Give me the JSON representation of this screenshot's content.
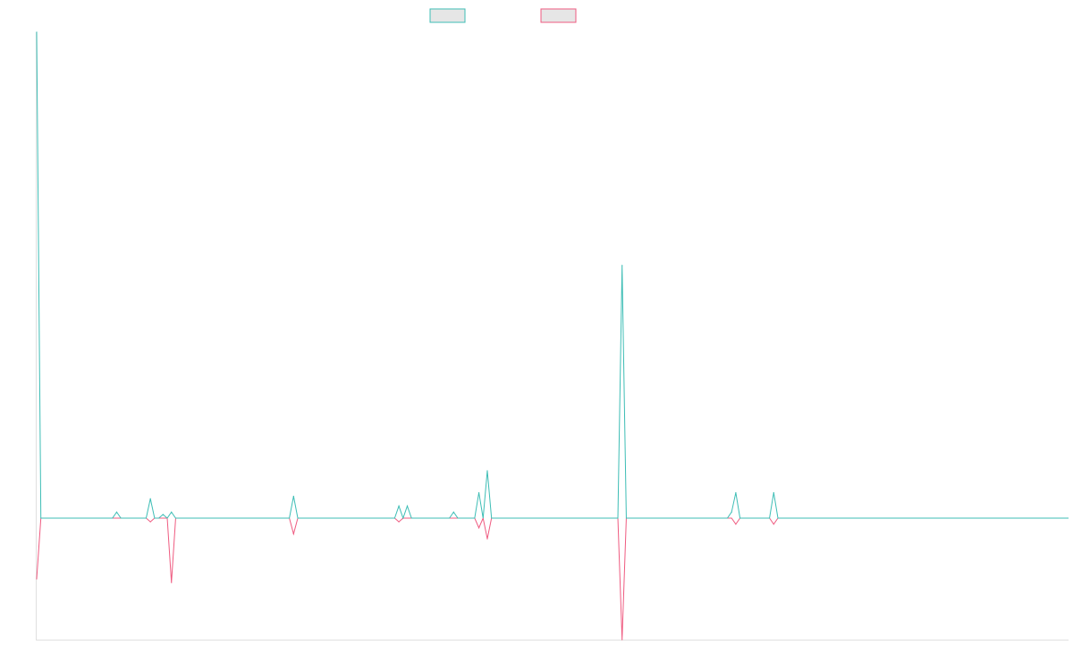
{
  "chart_data": {
    "type": "line",
    "title": "",
    "xlabel": "",
    "ylabel": "",
    "ylim": [
      -100,
      400
    ],
    "grid": false,
    "legend_placement": "top-center",
    "colors": {
      "series_a": "#3dbdb5",
      "series_b": "#ef5b80",
      "legend_fill": "#e6e6e6",
      "axis": "#e0e0e0"
    },
    "series": [
      {
        "values": [
          400,
          0,
          0,
          0,
          0,
          0,
          0,
          0,
          0,
          0,
          0,
          0,
          0,
          0,
          0,
          0,
          0,
          0,
          0,
          0,
          0,
          0,
          0,
          0,
          0,
          0,
          0,
          0,
          0,
          0,
          0,
          0,
          0,
          0,
          0,
          0,
          0,
          0,
          0,
          0,
          0,
          0,
          0,
          0,
          0,
          0,
          0,
          0,
          0,
          0,
          0,
          0,
          0,
          0,
          0,
          0,
          0,
          0,
          0,
          0,
          0,
          0,
          0,
          0,
          0,
          0,
          0,
          0,
          0,
          0,
          0,
          0,
          0,
          0,
          0,
          0,
          0,
          0,
          0,
          0,
          0,
          0,
          0,
          0,
          0,
          0,
          0,
          0,
          0,
          0,
          0,
          0,
          0,
          0,
          0,
          0,
          0,
          0,
          0,
          0,
          0,
          0,
          0,
          0,
          0,
          0,
          0,
          0,
          0,
          0,
          0,
          0,
          0,
          0,
          0,
          0,
          0,
          0,
          0,
          0,
          0,
          0,
          0,
          0,
          0,
          0,
          0,
          0,
          0,
          0,
          0,
          0,
          0,
          0,
          0,
          0,
          0,
          0,
          0,
          0,
          0,
          0,
          0,
          0,
          0,
          0,
          0,
          0,
          0,
          0,
          0,
          0,
          0,
          0,
          0,
          0,
          0,
          0,
          0,
          0,
          0,
          0,
          0,
          0,
          0,
          0,
          0,
          0,
          0,
          0,
          0,
          0,
          0,
          0,
          0,
          0,
          0,
          0,
          0,
          0,
          0,
          0,
          0,
          0,
          0,
          0,
          0,
          0,
          0,
          0,
          0,
          0,
          0,
          0,
          0,
          0,
          0,
          0,
          0,
          0,
          0,
          0,
          0,
          0,
          0,
          0,
          0,
          0,
          0,
          0,
          0,
          0,
          0,
          0,
          0,
          0,
          0,
          0,
          0,
          0,
          0,
          0,
          0,
          0,
          0,
          0,
          0,
          0,
          0,
          0,
          0,
          0,
          0,
          0,
          0,
          0,
          0,
          0,
          0,
          0,
          0,
          0,
          0,
          0,
          0,
          0
        ]
      },
      {
        "values": [
          -50,
          0,
          0,
          0,
          0,
          0,
          0,
          0,
          0,
          0,
          0,
          0,
          0,
          0,
          0,
          0,
          0,
          0,
          0,
          0,
          0,
          0,
          0,
          0,
          0,
          0,
          0,
          0,
          0,
          0,
          0,
          0,
          0,
          0,
          0,
          0,
          0,
          0,
          0,
          0,
          0,
          0,
          0,
          0,
          0,
          0,
          0,
          0,
          0,
          0,
          0,
          0,
          0,
          0,
          0,
          0,
          0,
          0,
          0,
          0,
          0,
          0,
          0,
          0,
          0,
          0,
          0,
          0,
          0,
          0,
          0,
          0,
          0,
          0,
          0,
          0,
          0,
          0,
          0,
          0,
          0,
          0,
          0,
          0,
          0,
          0,
          0,
          0,
          0,
          0,
          0,
          0,
          0,
          0,
          0,
          0,
          0,
          0,
          0,
          0,
          0,
          0,
          0,
          0,
          0,
          0,
          0,
          0,
          0,
          0,
          0,
          0,
          0,
          0,
          0,
          0,
          0,
          0,
          0,
          0,
          0,
          0,
          0,
          0,
          0,
          0,
          0,
          0,
          0,
          0,
          0,
          0,
          0,
          0,
          0,
          0,
          0,
          0,
          0,
          0,
          0,
          0,
          0,
          0,
          0,
          0,
          0,
          0,
          0,
          0,
          0,
          0,
          0,
          0,
          0,
          0,
          0,
          0,
          0,
          0,
          0,
          0,
          0,
          0,
          0,
          0,
          0,
          0,
          0,
          0,
          0,
          0,
          0,
          0,
          0,
          0,
          0,
          0,
          0,
          0,
          0,
          0,
          0,
          0,
          0,
          0,
          0,
          0,
          0,
          0,
          0,
          0,
          0,
          0,
          0,
          0,
          0,
          0,
          0,
          0,
          0,
          0,
          0,
          0,
          0,
          0,
          0,
          0,
          0,
          0,
          0,
          0,
          0,
          0,
          0,
          0,
          0,
          0,
          0,
          0,
          0,
          0,
          0,
          0,
          0,
          0,
          0,
          0,
          0,
          0,
          0,
          0,
          0,
          0,
          0,
          0,
          0,
          0,
          0,
          0,
          0,
          0,
          0,
          0,
          0,
          0
        ]
      }
    ],
    "spikes": {
      "series_a": [
        [
          19,
          5
        ],
        [
          27,
          16
        ],
        [
          30,
          3
        ],
        [
          32,
          5
        ],
        [
          61,
          18
        ],
        [
          86,
          10
        ],
        [
          88,
          10
        ],
        [
          99,
          5
        ],
        [
          105,
          21
        ],
        [
          107,
          39
        ],
        [
          139,
          208
        ],
        [
          165,
          5
        ],
        [
          166,
          21
        ],
        [
          175,
          21
        ]
      ],
      "series_b": [
        [
          27,
          -3
        ],
        [
          32,
          -53
        ],
        [
          61,
          -13
        ],
        [
          86,
          -3
        ],
        [
          105,
          -8
        ],
        [
          107,
          -17
        ],
        [
          139,
          -100
        ],
        [
          166,
          -5
        ],
        [
          175,
          -5
        ]
      ]
    }
  }
}
